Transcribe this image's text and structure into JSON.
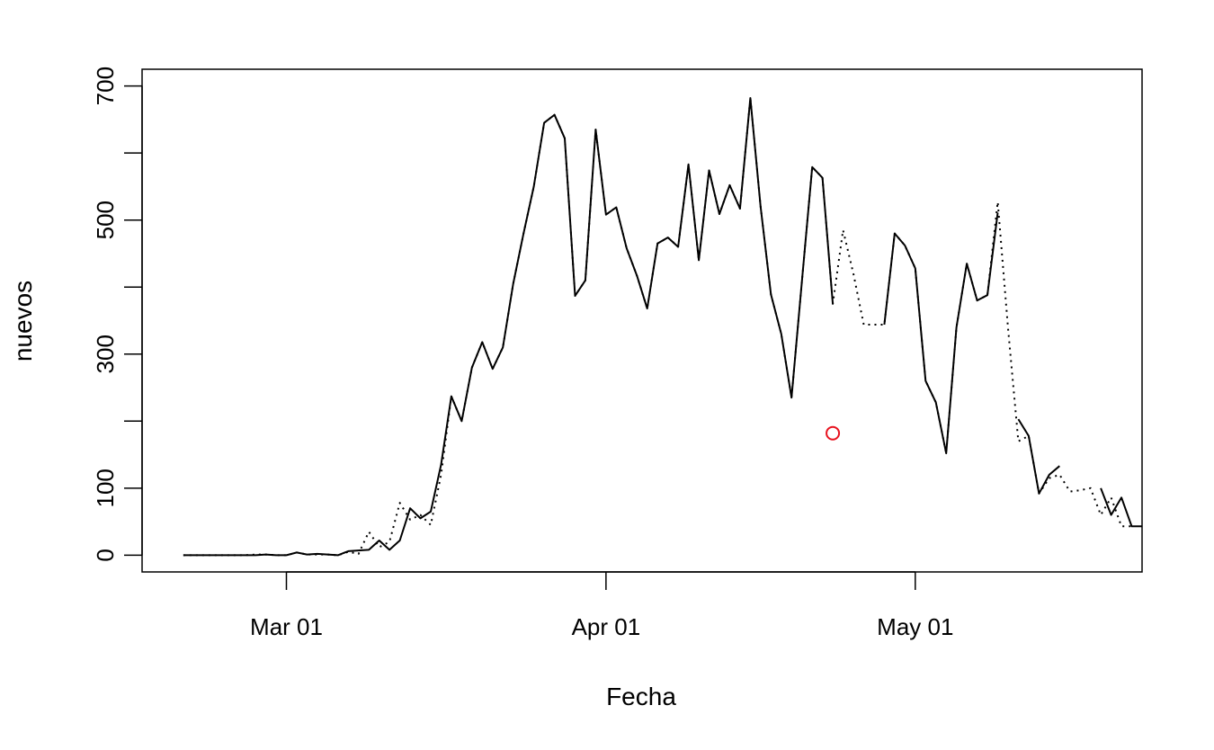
{
  "chart_data": {
    "type": "line",
    "title": "",
    "xlabel": "Fecha",
    "ylabel": "nuevos",
    "xlim": [
      "2020-02-16",
      "2020-05-23"
    ],
    "ylim": [
      -25,
      725
    ],
    "xticks": [
      {
        "date": "2020-03-01",
        "label": "Mar 01"
      },
      {
        "date": "2020-04-01",
        "label": "Apr 01"
      },
      {
        "date": "2020-05-01",
        "label": "May 01"
      }
    ],
    "yticks": [
      {
        "value": 0,
        "label": "0"
      },
      {
        "value": 100,
        "label": "100"
      },
      {
        "value": 300,
        "label": "300"
      },
      {
        "value": 500,
        "label": "500"
      },
      {
        "value": 700,
        "label": "700"
      }
    ],
    "grid": false,
    "series": [
      {
        "style": "solid",
        "color": "#000000",
        "start_date": "2020-02-20",
        "values": [
          0,
          0,
          0,
          0,
          0,
          0,
          0,
          0,
          1,
          0,
          0,
          4,
          1,
          2,
          1,
          0,
          6,
          7,
          8,
          22,
          8,
          22,
          70,
          55,
          65,
          135,
          237,
          200,
          280,
          318,
          278,
          310,
          405,
          480,
          550,
          645,
          657,
          622,
          387,
          410,
          635,
          508,
          519,
          458,
          417,
          368,
          465,
          474,
          460,
          583,
          440,
          574,
          509,
          552,
          517,
          682,
          520,
          389,
          330,
          235,
          408,
          579,
          563,
          375,
          null,
          null,
          null,
          null,
          344,
          480,
          462,
          428,
          260,
          228,
          152,
          340,
          435,
          380,
          388,
          511,
          null,
          203,
          178,
          92,
          120,
          133,
          null,
          null,
          null,
          100,
          60,
          86,
          43,
          43
        ],
        "x": null
      },
      {
        "style": "dotted",
        "color": "#000000",
        "start_date": "2020-02-20",
        "values": [
          0,
          0,
          0,
          0,
          0,
          0,
          0,
          1,
          1,
          0,
          0,
          4,
          1,
          1,
          1,
          0,
          5,
          2,
          35,
          12,
          20,
          78,
          53,
          60,
          45,
          120,
          237,
          200,
          280,
          318,
          278,
          310,
          405,
          480,
          550,
          645,
          657,
          622,
          387,
          410,
          635,
          508,
          519,
          458,
          417,
          368,
          465,
          474,
          460,
          583,
          440,
          574,
          509,
          552,
          517,
          682,
          520,
          389,
          330,
          235,
          408,
          579,
          563,
          375,
          485,
          420,
          344,
          344,
          344,
          480,
          462,
          428,
          260,
          228,
          152,
          340,
          435,
          380,
          388,
          527,
          338,
          170,
          178,
          92,
          115,
          120,
          95,
          97,
          100,
          60,
          86,
          43,
          43
        ]
      },
      {
        "style": "point",
        "color": "#e8131f",
        "points": [
          {
            "date": "2020-04-23",
            "value": 182
          }
        ]
      }
    ]
  }
}
